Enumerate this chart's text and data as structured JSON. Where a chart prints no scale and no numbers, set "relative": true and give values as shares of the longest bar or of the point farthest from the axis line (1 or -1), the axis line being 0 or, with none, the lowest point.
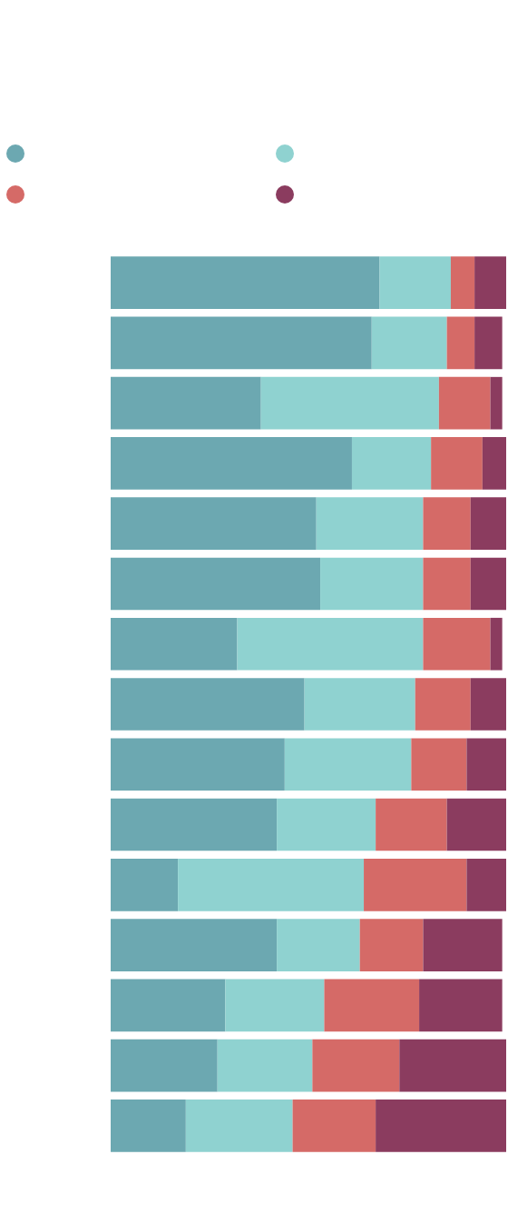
{
  "chart_data": {
    "type": "bar",
    "orientation": "horizontal",
    "stacked": true,
    "relative": true,
    "categories": [
      null,
      null,
      null,
      null,
      null,
      null,
      null,
      null,
      null,
      null,
      null,
      null,
      null,
      null,
      null
    ],
    "series": [
      {
        "color": "#6ca8b1",
        "values": [
          0.68,
          0.66,
          0.38,
          0.61,
          0.52,
          0.53,
          0.32,
          0.49,
          0.44,
          0.42,
          0.17,
          0.42,
          0.29,
          0.27,
          0.19
        ]
      },
      {
        "color": "#8fd2d0",
        "values": [
          0.18,
          0.19,
          0.45,
          0.2,
          0.27,
          0.26,
          0.47,
          0.28,
          0.32,
          0.25,
          0.47,
          0.21,
          0.25,
          0.24,
          0.27
        ]
      },
      {
        "color": "#d56a67",
        "values": [
          0.06,
          0.07,
          0.13,
          0.13,
          0.12,
          0.12,
          0.17,
          0.14,
          0.14,
          0.18,
          0.26,
          0.16,
          0.24,
          0.22,
          0.21
        ]
      },
      {
        "color": "#8b3c5f",
        "values": [
          0.08,
          0.07,
          0.03,
          0.06,
          0.09,
          0.09,
          0.03,
          0.09,
          0.1,
          0.15,
          0.1,
          0.2,
          0.21,
          0.27,
          0.33
        ]
      }
    ]
  }
}
